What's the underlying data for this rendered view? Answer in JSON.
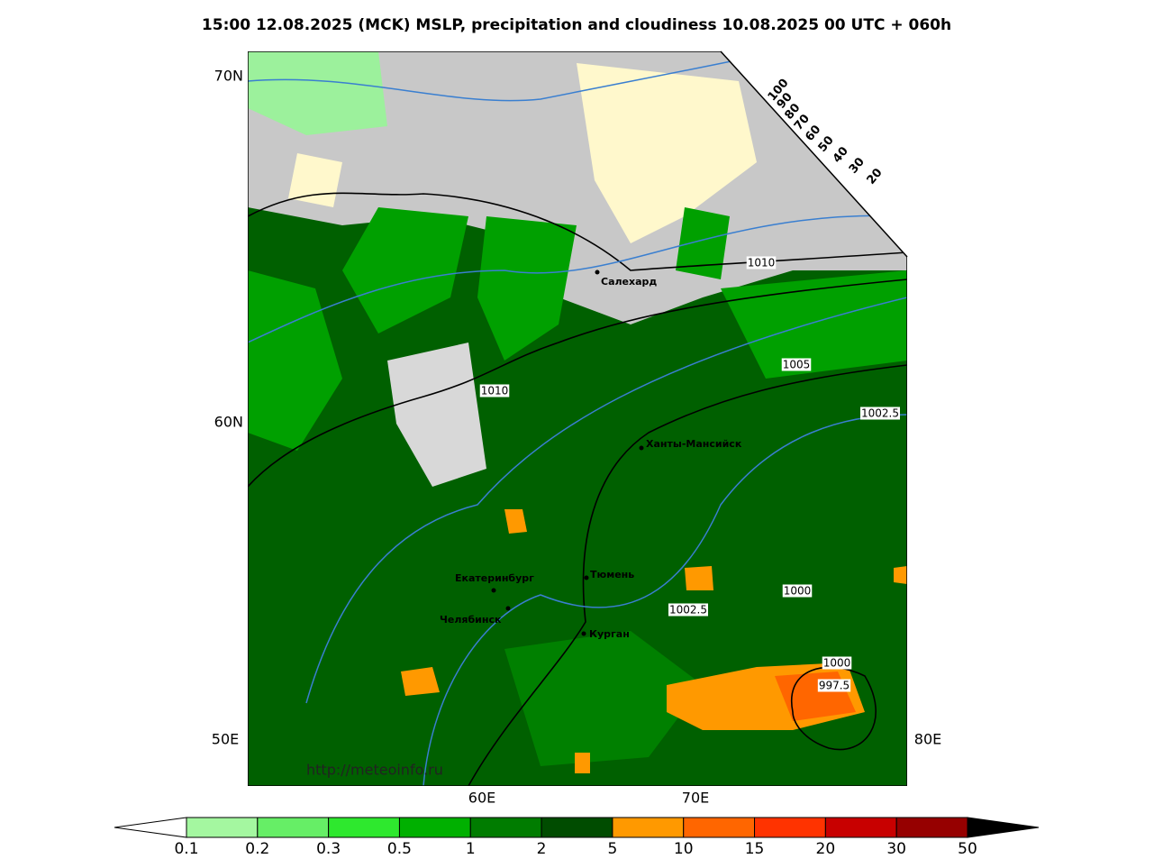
{
  "title": "15:00 12.08.2025 (MCK) MSLP, precipitation and cloudiness 10.08.2025 00 UTC + 060h",
  "axis_labels": [
    "70N",
    "60N",
    "50E",
    "60E",
    "70E",
    "80E"
  ],
  "cities": [
    "Салехард",
    "Ханты-Мансийск",
    "Екатеринбург",
    "Тюмень",
    "Челябинск",
    "Курган"
  ],
  "isobar_labels": [
    "1010",
    "1010",
    "1005",
    "1002.5",
    "1002.5",
    "1000",
    "1000",
    "997.5"
  ],
  "cloudiness_scale": [
    100,
    90,
    80,
    70,
    60,
    50,
    40,
    30,
    20
  ],
  "colorbar": {
    "labels": [
      0.1,
      0.2,
      0.3,
      0.5,
      1,
      2,
      5,
      10,
      15,
      20,
      30,
      50
    ],
    "colors": [
      "#a4f7a0",
      "#66ee66",
      "#2ee82e",
      "#00b000",
      "#007c00",
      "#004c00",
      "#ff9900",
      "#ff6600",
      "#ff3300",
      "#c80000",
      "#960000"
    ]
  },
  "watermark": "http://meteoinfo.ru"
}
